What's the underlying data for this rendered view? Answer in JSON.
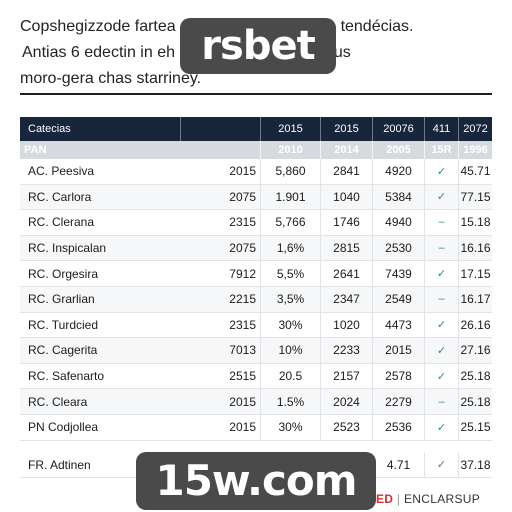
{
  "intro": {
    "line1": "Copshegizzode fartea",
    "line1_tail": "tendécias.",
    "line2": "Antias 6 edectin in eh",
    "line2_tail": "us",
    "line3": "moro-gera chas starriney."
  },
  "watermarks": {
    "top": "rsbet",
    "bottom": "15w.com"
  },
  "table": {
    "header": {
      "name": "Catecias",
      "columns": [
        "2015",
        "2015",
        "20076",
        "411",
        "2072"
      ]
    },
    "subheader": {
      "name": "PAN",
      "columns": [
        "2010",
        "2014",
        "2005",
        "15R",
        "1996"
      ]
    },
    "rows": [
      {
        "name": "AC. Peesiva",
        "year": "2015",
        "v1": "5,860",
        "v2": "2841",
        "v3": "4920",
        "v4": "✓",
        "v5": "45.71"
      },
      {
        "name": "RC. Carlora",
        "year": "2075",
        "v1": "1.901",
        "v2": "1040",
        "v3": "5384",
        "v4": "✓",
        "v5": "77.15"
      },
      {
        "name": "RC. Clerana",
        "year": "2315",
        "v1": "5,766",
        "v2": "1746",
        "v3": "4940",
        "v4": "–",
        "v5": "15.18"
      },
      {
        "name": "RC. Inspicalan",
        "year": "2075",
        "v1": "1,6%",
        "v2": "2815",
        "v3": "2530",
        "v4": "–",
        "v5": "16.16"
      },
      {
        "name": "RC. Orgesira",
        "year": "7912",
        "v1": "5,5%",
        "v2": "2641",
        "v3": "7439",
        "v4": "✓",
        "v5": "17.15"
      },
      {
        "name": "RC. Grarlian",
        "year": "2215",
        "v1": "3,5%",
        "v2": "2347",
        "v3": "2549",
        "v4": "–",
        "v5": "16.17"
      },
      {
        "name": "RC. Turdcied",
        "year": "2315",
        "v1": "30%",
        "v2": "1020",
        "v3": "4473",
        "v4": "✓",
        "v5": "26.16"
      },
      {
        "name": "RC. Cagerita",
        "year": "7013",
        "v1": "10%",
        "v2": "2233",
        "v3": "2015",
        "v4": "✓",
        "v5": "27.16"
      },
      {
        "name": "RC. Safenarto",
        "year": "2515",
        "v1": "20.5",
        "v2": "2157",
        "v3": "2578",
        "v4": "✓",
        "v5": "25.18"
      },
      {
        "name": "RC. Cleara",
        "year": "2015",
        "v1": "1.5%",
        "v2": "2024",
        "v3": "2279",
        "v4": "–",
        "v5": "25.18"
      },
      {
        "name": "PN Codjollea",
        "year": "2015",
        "v1": "30%",
        "v2": "2523",
        "v3": "2536",
        "v4": "✓",
        "v5": "25.15"
      }
    ],
    "total": {
      "name": "FR. Adtinen",
      "v3": "4.71",
      "v4": "✓",
      "v5": "37.18"
    }
  },
  "footer": {
    "accent": "ED",
    "brand": "ENCLARSUP"
  }
}
